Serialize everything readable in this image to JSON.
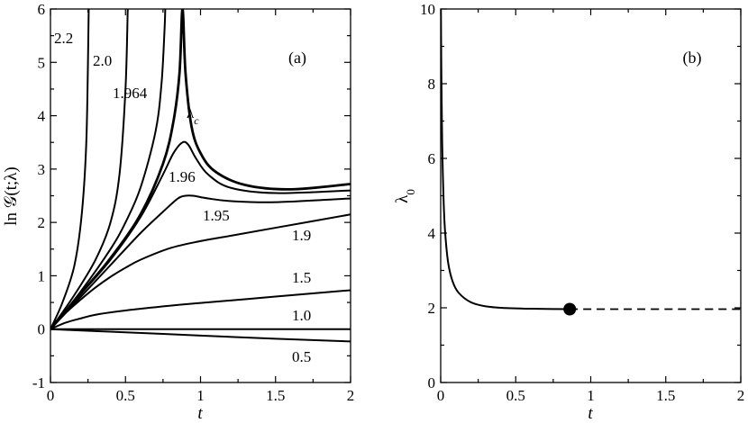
{
  "chart_data": [
    {
      "panel": "(a)",
      "type": "line",
      "xlabel": "t",
      "ylabel": "ln 𝒢(t;λ)",
      "xlim": [
        0,
        2
      ],
      "ylim": [
        -1,
        6
      ],
      "xticks": [
        "0",
        "0.5",
        "1",
        "1.5",
        "2"
      ],
      "yticks": [
        "-1",
        "0",
        "1",
        "2",
        "3",
        "4",
        "5",
        "6"
      ],
      "series": [
        {
          "name": "0.5",
          "x": [
            0,
            0.5,
            1,
            1.5,
            2
          ],
          "y": [
            0,
            -0.06,
            -0.12,
            -0.18,
            -0.23
          ]
        },
        {
          "name": "1.0",
          "x": [
            0,
            2
          ],
          "y": [
            0,
            0
          ]
        },
        {
          "name": "1.5",
          "x": [
            0,
            0.1,
            0.2,
            0.3,
            0.5,
            0.8,
            1.0,
            1.5,
            2.0
          ],
          "y": [
            0,
            0.12,
            0.2,
            0.27,
            0.35,
            0.44,
            0.49,
            0.61,
            0.73
          ]
        },
        {
          "name": "1.9",
          "x": [
            0,
            0.1,
            0.2,
            0.3,
            0.4,
            0.5,
            0.6,
            0.8,
            1.0,
            1.2,
            1.5,
            2.0
          ],
          "y": [
            0,
            0.3,
            0.55,
            0.78,
            0.98,
            1.15,
            1.3,
            1.52,
            1.65,
            1.75,
            1.9,
            2.15
          ]
        },
        {
          "name": "1.95",
          "x": [
            0,
            0.2,
            0.4,
            0.6,
            0.75,
            0.85,
            0.9,
            0.95,
            1.05,
            1.2,
            1.5,
            2.0
          ],
          "y": [
            0,
            0.6,
            1.2,
            1.8,
            2.2,
            2.45,
            2.5,
            2.5,
            2.45,
            2.4,
            2.38,
            2.45
          ]
        },
        {
          "name": "1.96",
          "x": [
            0,
            0.2,
            0.4,
            0.6,
            0.75,
            0.82,
            0.88,
            0.92,
            0.97,
            1.05,
            1.2,
            1.5,
            2.0
          ],
          "y": [
            0,
            0.65,
            1.3,
            2.1,
            2.9,
            3.3,
            3.5,
            3.45,
            3.2,
            2.9,
            2.65,
            2.55,
            2.6
          ]
        },
        {
          "name": "λc",
          "x": [
            0,
            0.2,
            0.4,
            0.6,
            0.75,
            0.82,
            0.86,
            0.88,
            0.9,
            0.94,
            1.0,
            1.1,
            1.3,
            1.6,
            2.0
          ],
          "y": [
            0,
            0.66,
            1.33,
            2.15,
            3.1,
            3.9,
            4.8,
            6.0,
            4.8,
            3.8,
            3.3,
            2.95,
            2.7,
            2.62,
            2.72
          ]
        },
        {
          "name": "1.964",
          "x": [
            0,
            0.2,
            0.4,
            0.5,
            0.6,
            0.7,
            0.74,
            0.76,
            0.765
          ],
          "y": [
            0,
            0.7,
            1.5,
            2.0,
            2.65,
            3.7,
            4.6,
            5.6,
            6.0
          ]
        },
        {
          "name": "2.0",
          "x": [
            0,
            0.15,
            0.3,
            0.4,
            0.46,
            0.5,
            0.515
          ],
          "y": [
            0,
            0.6,
            1.3,
            2.0,
            2.9,
            4.5,
            6.0
          ]
        },
        {
          "name": "2.2",
          "x": [
            0,
            0.08,
            0.16,
            0.21,
            0.24,
            0.255
          ],
          "y": [
            0,
            0.5,
            1.2,
            2.2,
            3.6,
            6.0
          ]
        }
      ],
      "labels": [
        "2.2",
        "2.0",
        "1.964",
        "λc",
        "1.96",
        "1.95",
        "1.9",
        "1.5",
        "1.0",
        "0.5"
      ]
    },
    {
      "panel": "(b)",
      "type": "line",
      "xlabel": "t",
      "ylabel": "λ0",
      "xlim": [
        0,
        2
      ],
      "ylim": [
        0,
        10
      ],
      "xticks": [
        "0",
        "0.5",
        "1",
        "1.5",
        "2"
      ],
      "yticks": [
        "0",
        "2",
        "4",
        "6",
        "8",
        "10"
      ],
      "series": [
        {
          "x": [
            0.0015,
            0.004,
            0.008,
            0.012,
            0.02,
            0.03,
            0.05,
            0.08,
            0.12,
            0.2,
            0.3,
            0.45,
            0.6,
            0.75,
            0.86
          ],
          "y": [
            10,
            8.5,
            7.0,
            6.0,
            4.8,
            4.0,
            3.2,
            2.7,
            2.4,
            2.15,
            2.04,
            1.99,
            1.975,
            1.967,
            1.964
          ]
        },
        {
          "style": "dashed",
          "x": [
            0.86,
            2.0
          ],
          "y": [
            1.964,
            1.964
          ]
        }
      ],
      "marker": {
        "x": 0.86,
        "y": 1.964
      }
    }
  ]
}
